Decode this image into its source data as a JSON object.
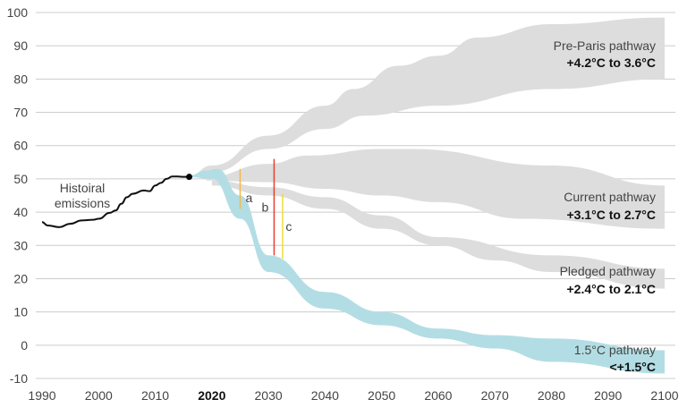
{
  "chart_data": {
    "type": "area",
    "xlim": [
      1990,
      2100
    ],
    "ylim": [
      -10,
      100
    ],
    "grid": true,
    "x_ticks": [
      1990,
      2000,
      2010,
      2020,
      2030,
      2040,
      2050,
      2060,
      2070,
      2080,
      2090,
      2100
    ],
    "x_tick_labels": [
      "1990",
      "2000",
      "2010",
      "2020",
      "2030",
      "2040",
      "2050",
      "2060",
      "2070",
      "2080",
      "2090",
      "2100"
    ],
    "bold_x_tick": "2020",
    "y_ticks": [
      -10,
      0,
      10,
      20,
      30,
      40,
      50,
      60,
      70,
      80,
      90,
      100
    ],
    "y_tick_labels": [
      "-10",
      "0",
      "10",
      "20",
      "30",
      "40",
      "50",
      "60",
      "70",
      "80",
      "90",
      "100"
    ],
    "historical": {
      "label_line1": "Histoiral",
      "label_line2": "emissions",
      "color": "#111111",
      "x": [
        1990,
        1991,
        1993,
        1995,
        1997,
        1999,
        2000,
        2002,
        2003,
        2004,
        2005,
        2006,
        2008,
        2009,
        2010,
        2011,
        2012,
        2013,
        2014,
        2015,
        2016
      ],
      "y": [
        37,
        36,
        35.5,
        36.5,
        37.5,
        37.7,
        38,
        39.8,
        40.5,
        42.5,
        44.5,
        45.5,
        46.5,
        46.3,
        48,
        48.8,
        50,
        50.7,
        50.7,
        50.6,
        50.6
      ]
    },
    "bands": [
      {
        "name": "Pre-Paris pathway",
        "range": "+4.2°C to 3.6°C",
        "color": "#dddddd",
        "upper": {
          "x": [
            2016,
            2020,
            2030,
            2040,
            2045,
            2053,
            2060,
            2067,
            2080,
            2100
          ],
          "y": [
            51,
            54,
            63,
            72,
            77,
            84,
            87,
            92.5,
            96.5,
            98.5
          ]
        },
        "lower": {
          "x": [
            2016,
            2020,
            2030,
            2040,
            2047,
            2060,
            2080,
            2100
          ],
          "y": [
            50.5,
            52,
            59,
            65,
            69,
            72,
            77,
            80
          ]
        }
      },
      {
        "name": "Current pathway",
        "range": "+3.1°C to 2.7°C",
        "color": "#dddddd",
        "upper": {
          "x": [
            2019,
            2030,
            2037,
            2050,
            2055,
            2080,
            2100
          ],
          "y": [
            50.5,
            54.5,
            57,
            59,
            59,
            54,
            48
          ]
        },
        "lower": {
          "x": [
            2019,
            2030,
            2040,
            2050,
            2060,
            2075,
            2100
          ],
          "y": [
            49.5,
            49,
            47,
            45,
            43,
            38,
            35
          ]
        }
      },
      {
        "name": "Pledged pathway",
        "range": "+2.4°C to 2.1°C",
        "color": "#dddddd",
        "upper": {
          "x": [
            2020,
            2030,
            2040,
            2050,
            2060,
            2080,
            2100
          ],
          "y": [
            49.5,
            47.5,
            44.5,
            39,
            32.5,
            27,
            23
          ]
        },
        "lower": {
          "x": [
            2020,
            2030,
            2040,
            2050,
            2060,
            2070,
            2080,
            2100
          ],
          "y": [
            48,
            45,
            41,
            35,
            30,
            25.5,
            22,
            17
          ]
        }
      },
      {
        "name": "1.5°C pathway",
        "range": "<+1.5°C",
        "color": "#b3dde4",
        "upper": {
          "x": [
            2016,
            2019,
            2021,
            2025,
            2030,
            2040,
            2050,
            2060,
            2070,
            2080,
            2100
          ],
          "y": [
            51,
            52.5,
            53,
            45,
            27,
            16,
            10,
            5,
            3,
            2,
            -1.5
          ]
        },
        "lower": {
          "x": [
            2016,
            2020,
            2025,
            2030,
            2040,
            2050,
            2060,
            2070,
            2080,
            2100
          ],
          "y": [
            50.5,
            50,
            38,
            22,
            11,
            6,
            2,
            -1,
            -5,
            -8.5
          ]
        }
      }
    ],
    "gaps": [
      {
        "label": "a",
        "x": 2025,
        "y_top": 53,
        "y_bottom": 41,
        "color": "#f2b84b"
      },
      {
        "label": "b",
        "x": 2031,
        "y_top": 56,
        "y_bottom": 27,
        "color": "#e8402a"
      },
      {
        "label": "c",
        "x": 2032.5,
        "y_top": 45.5,
        "y_bottom": 26,
        "color": "#eedd3a"
      }
    ]
  }
}
